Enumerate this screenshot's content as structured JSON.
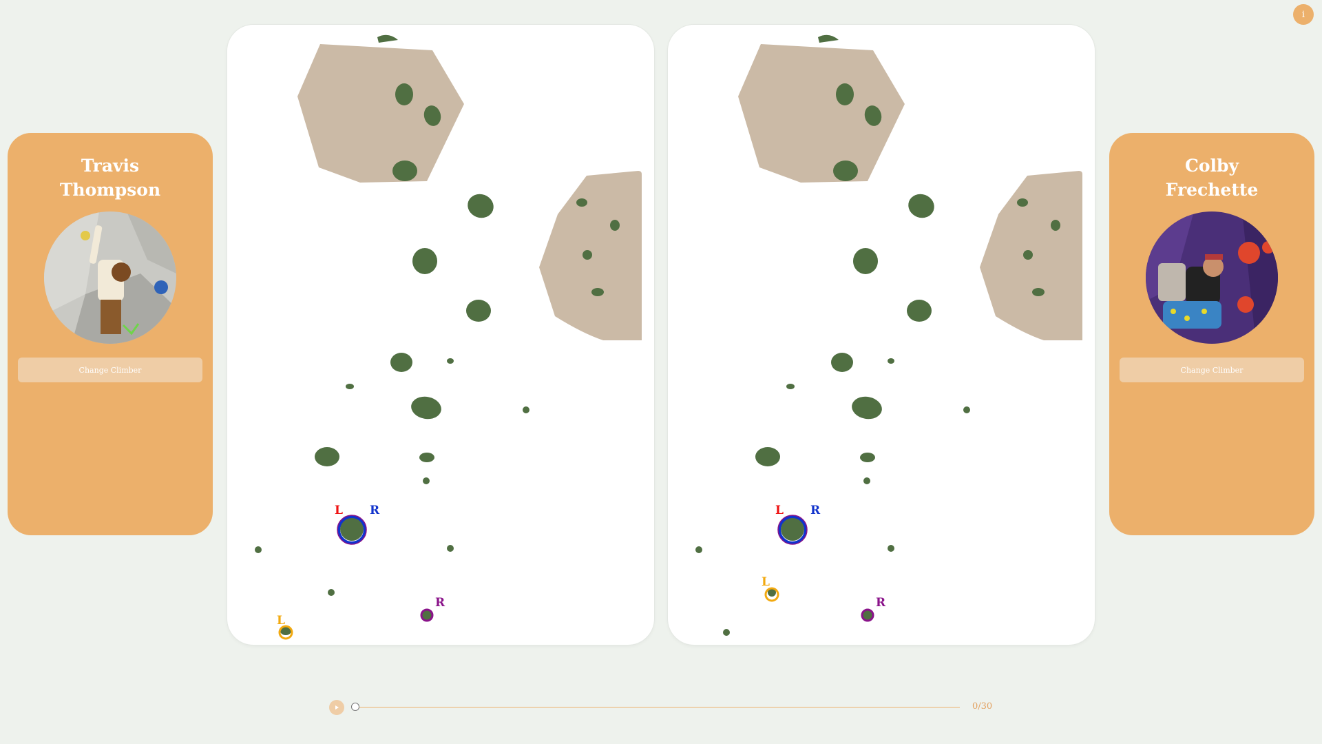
{
  "info_button": {
    "label": "i"
  },
  "climbers": {
    "left": {
      "first_name": "Travis",
      "last_name": "Thompson",
      "change_label": "Change Climber"
    },
    "right": {
      "first_name": "Colby",
      "last_name": "Frechette",
      "change_label": "Change Climber"
    }
  },
  "wall": {
    "hand_labels": {
      "left": "L",
      "right": "R"
    },
    "colors": {
      "hold": "#506f42",
      "volume": "#cbbaa6",
      "left_hand": "#e11",
      "right_hand": "#1133cc",
      "left_foot": "#f2a90f",
      "right_foot": "#8a138a"
    }
  },
  "playback": {
    "step": 0,
    "total": 30,
    "counter": "0/30",
    "play_icon": "play-icon"
  }
}
